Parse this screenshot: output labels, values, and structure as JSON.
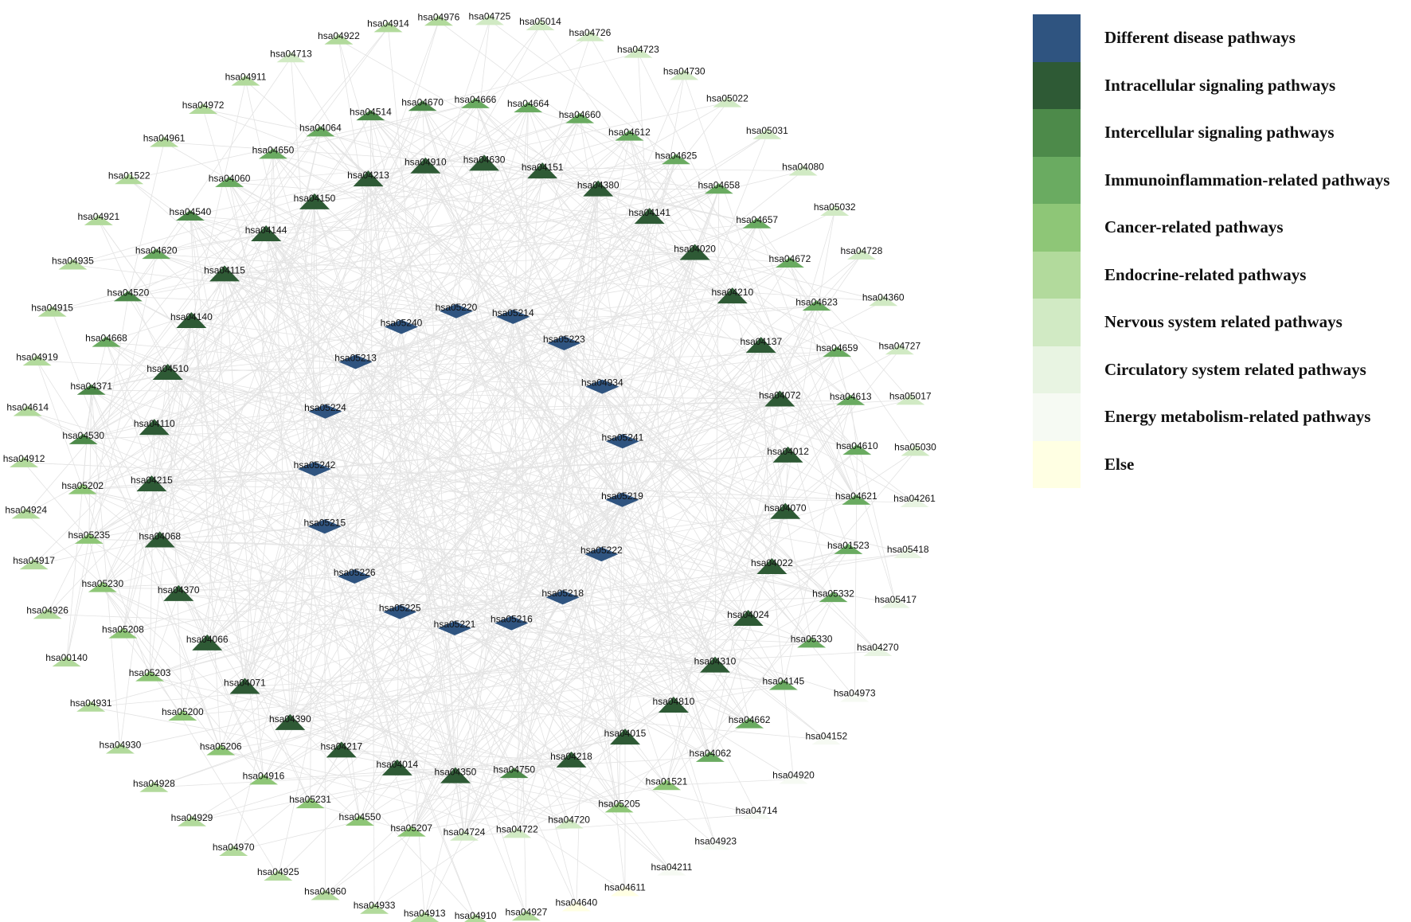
{
  "legend": {
    "items": [
      {
        "label": "Different disease pathways",
        "color": "#2f5480"
      },
      {
        "label": "Intracellular signaling pathways",
        "color": "#2e5a35"
      },
      {
        "label": "Intercellular signaling pathways",
        "color": "#4d8a4a"
      },
      {
        "label": "Immunoinflammation-related pathways",
        "color": "#6aab61"
      },
      {
        "label": "Cancer-related pathways",
        "color": "#8ec677"
      },
      {
        "label": "Endocrine-related pathways",
        "color": "#b2da9c"
      },
      {
        "label": "Nervous system related pathways",
        "color": "#d1eac4"
      },
      {
        "label": "Circulatory system related pathways",
        "color": "#e8f4e2"
      },
      {
        "label": "Energy metabolism-related pathways",
        "color": "#f6faf3"
      },
      {
        "label": "Else",
        "color": "#ffffe3"
      }
    ]
  },
  "network": {
    "shapes": {
      "disease": "diamond",
      "other": "triangle"
    },
    "edge_color": "#e3e3e3",
    "nodes": [
      {
        "label": "hsa05220",
        "category": 0
      },
      {
        "label": "hsa05240",
        "category": 0
      },
      {
        "label": "hsa05214",
        "category": 0
      },
      {
        "label": "hsa05213",
        "category": 0
      },
      {
        "label": "hsa05223",
        "category": 0
      },
      {
        "label": "hsa05224",
        "category": 0
      },
      {
        "label": "hsa04934",
        "category": 0
      },
      {
        "label": "hsa05242",
        "category": 0
      },
      {
        "label": "hsa05241",
        "category": 0
      },
      {
        "label": "hsa05215",
        "category": 0
      },
      {
        "label": "hsa05219",
        "category": 0
      },
      {
        "label": "hsa05226",
        "category": 0
      },
      {
        "label": "hsa05222",
        "category": 0
      },
      {
        "label": "hsa05225",
        "category": 0
      },
      {
        "label": "hsa05218",
        "category": 0
      },
      {
        "label": "hsa05221",
        "category": 0
      },
      {
        "label": "hsa05216",
        "category": 0
      },
      {
        "label": "hsa04910",
        "category": 1
      },
      {
        "label": "hsa04213",
        "category": 1
      },
      {
        "label": "hsa04630",
        "category": 1
      },
      {
        "label": "hsa04150",
        "category": 1
      },
      {
        "label": "hsa04151",
        "category": 1
      },
      {
        "label": "hsa04144",
        "category": 1
      },
      {
        "label": "hsa04380",
        "category": 1
      },
      {
        "label": "hsa04115",
        "category": 1
      },
      {
        "label": "hsa04141",
        "category": 1
      },
      {
        "label": "hsa04140",
        "category": 1
      },
      {
        "label": "hsa04020",
        "category": 1
      },
      {
        "label": "hsa04510",
        "category": 1
      },
      {
        "label": "hsa04210",
        "category": 1
      },
      {
        "label": "hsa04110",
        "category": 1
      },
      {
        "label": "hsa04137",
        "category": 1
      },
      {
        "label": "hsa04215",
        "category": 1
      },
      {
        "label": "hsa04072",
        "category": 1
      },
      {
        "label": "hsa04068",
        "category": 1
      },
      {
        "label": "hsa04012",
        "category": 1
      },
      {
        "label": "hsa04370",
        "category": 1
      },
      {
        "label": "hsa04070",
        "category": 1
      },
      {
        "label": "hsa04066",
        "category": 1
      },
      {
        "label": "hsa04022",
        "category": 1
      },
      {
        "label": "hsa04071",
        "category": 1
      },
      {
        "label": "hsa04024",
        "category": 1
      },
      {
        "label": "hsa04390",
        "category": 1
      },
      {
        "label": "hsa04310",
        "category": 1
      },
      {
        "label": "hsa04217",
        "category": 1
      },
      {
        "label": "hsa04810",
        "category": 1
      },
      {
        "label": "hsa04014",
        "category": 1
      },
      {
        "label": "hsa04015",
        "category": 1
      },
      {
        "label": "hsa04350",
        "category": 1
      },
      {
        "label": "hsa04218",
        "category": 1
      },
      {
        "label": "hsa04750",
        "category": 2
      },
      {
        "label": "hsa04670",
        "category": 2
      },
      {
        "label": "hsa04514",
        "category": 2
      },
      {
        "label": "hsa04666",
        "category": 3
      },
      {
        "label": "hsa04064",
        "category": 3
      },
      {
        "label": "hsa04664",
        "category": 3
      },
      {
        "label": "hsa04650",
        "category": 3
      },
      {
        "label": "hsa04660",
        "category": 3
      },
      {
        "label": "hsa04060",
        "category": 3
      },
      {
        "label": "hsa04612",
        "category": 3
      },
      {
        "label": "hsa04540",
        "category": 2
      },
      {
        "label": "hsa04625",
        "category": 3
      },
      {
        "label": "hsa04620",
        "category": 3
      },
      {
        "label": "hsa04658",
        "category": 3
      },
      {
        "label": "hsa04520",
        "category": 2
      },
      {
        "label": "hsa04657",
        "category": 3
      },
      {
        "label": "hsa04668",
        "category": 3
      },
      {
        "label": "hsa04672",
        "category": 3
      },
      {
        "label": "hsa04371",
        "category": 2
      },
      {
        "label": "hsa04623",
        "category": 3
      },
      {
        "label": "hsa04530",
        "category": 2
      },
      {
        "label": "hsa04659",
        "category": 3
      },
      {
        "label": "hsa05202",
        "category": 4
      },
      {
        "label": "hsa04613",
        "category": 3
      },
      {
        "label": "hsa05235",
        "category": 4
      },
      {
        "label": "hsa04610",
        "category": 3
      },
      {
        "label": "hsa05230",
        "category": 4
      },
      {
        "label": "hsa04621",
        "category": 3
      },
      {
        "label": "hsa05208",
        "category": 4
      },
      {
        "label": "hsa01523",
        "category": 3
      },
      {
        "label": "hsa05203",
        "category": 4
      },
      {
        "label": "hsa05332",
        "category": 3
      },
      {
        "label": "hsa05200",
        "category": 4
      },
      {
        "label": "hsa05330",
        "category": 3
      },
      {
        "label": "hsa05206",
        "category": 4
      },
      {
        "label": "hsa04145",
        "category": 3
      },
      {
        "label": "hsa04916",
        "category": 4
      },
      {
        "label": "hsa04662",
        "category": 3
      },
      {
        "label": "hsa05231",
        "category": 4
      },
      {
        "label": "hsa04062",
        "category": 3
      },
      {
        "label": "hsa04550",
        "category": 4
      },
      {
        "label": "hsa01521",
        "category": 4
      },
      {
        "label": "hsa05207",
        "category": 4
      },
      {
        "label": "hsa05205",
        "category": 4
      },
      {
        "label": "hsa04724",
        "category": 6
      },
      {
        "label": "hsa04720",
        "category": 6
      },
      {
        "label": "hsa04722",
        "category": 6
      },
      {
        "label": "hsa04976",
        "category": 5
      },
      {
        "label": "hsa04914",
        "category": 5
      },
      {
        "label": "hsa04725",
        "category": 6
      },
      {
        "label": "hsa04922",
        "category": 5
      },
      {
        "label": "hsa05014",
        "category": 6
      },
      {
        "label": "hsa04713",
        "category": 6
      },
      {
        "label": "hsa04726",
        "category": 6
      },
      {
        "label": "hsa04911",
        "category": 5
      },
      {
        "label": "hsa04723",
        "category": 6
      },
      {
        "label": "hsa04972",
        "category": 5
      },
      {
        "label": "hsa04730",
        "category": 6
      },
      {
        "label": "hsa04961",
        "category": 5
      },
      {
        "label": "hsa05022",
        "category": 6
      },
      {
        "label": "hsa01522",
        "category": 5
      },
      {
        "label": "hsa05031",
        "category": 6
      },
      {
        "label": "hsa04921",
        "category": 5
      },
      {
        "label": "hsa04080",
        "category": 6
      },
      {
        "label": "hsa04935",
        "category": 5
      },
      {
        "label": "hsa05032",
        "category": 6
      },
      {
        "label": "hsa04915",
        "category": 5
      },
      {
        "label": "hsa04728",
        "category": 6
      },
      {
        "label": "hsa04919",
        "category": 5
      },
      {
        "label": "hsa04360",
        "category": 6
      },
      {
        "label": "hsa04614",
        "category": 5
      },
      {
        "label": "hsa04727",
        "category": 6
      },
      {
        "label": "hsa04912",
        "category": 5
      },
      {
        "label": "hsa05017",
        "category": 6
      },
      {
        "label": "hsa04924",
        "category": 5
      },
      {
        "label": "hsa05030",
        "category": 6
      },
      {
        "label": "hsa04917",
        "category": 5
      },
      {
        "label": "hsa04261",
        "category": 7
      },
      {
        "label": "hsa04926",
        "category": 5
      },
      {
        "label": "hsa05418",
        "category": 7
      },
      {
        "label": "hsa00140",
        "category": 5
      },
      {
        "label": "hsa05417",
        "category": 7
      },
      {
        "label": "hsa04931",
        "category": 5
      },
      {
        "label": "hsa04270",
        "category": 7
      },
      {
        "label": "hsa04930",
        "category": 5
      },
      {
        "label": "hsa04973",
        "category": 8
      },
      {
        "label": "hsa04928",
        "category": 5
      },
      {
        "label": "hsa04152",
        "category": 8
      },
      {
        "label": "hsa04929",
        "category": 5
      },
      {
        "label": "hsa04920",
        "category": 8
      },
      {
        "label": "hsa04970",
        "category": 5
      },
      {
        "label": "hsa04714",
        "category": 8
      },
      {
        "label": "hsa04925",
        "category": 5
      },
      {
        "label": "hsa04923",
        "category": 8
      },
      {
        "label": "hsa04960",
        "category": 5
      },
      {
        "label": "hsa04211",
        "category": 8
      },
      {
        "label": "hsa04933",
        "category": 5
      },
      {
        "label": "hsa04611",
        "category": 9
      },
      {
        "label": "hsa04913",
        "category": 5
      },
      {
        "label": "hsa04640",
        "category": 9
      },
      {
        "label": "hsa04910",
        "category": 5
      },
      {
        "label": "hsa04927",
        "category": 5
      }
    ]
  }
}
